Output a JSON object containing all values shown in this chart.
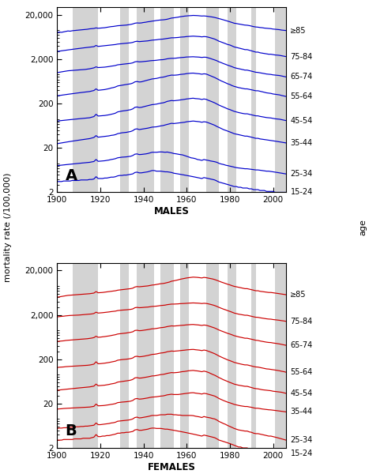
{
  "years": [
    1900,
    1901,
    1902,
    1903,
    1904,
    1905,
    1906,
    1907,
    1908,
    1909,
    1910,
    1911,
    1912,
    1913,
    1914,
    1915,
    1916,
    1917,
    1918,
    1919,
    1920,
    1921,
    1922,
    1923,
    1924,
    1925,
    1926,
    1927,
    1928,
    1929,
    1930,
    1931,
    1932,
    1933,
    1934,
    1935,
    1936,
    1937,
    1938,
    1939,
    1940,
    1941,
    1942,
    1943,
    1944,
    1945,
    1946,
    1947,
    1948,
    1949,
    1950,
    1951,
    1952,
    1953,
    1954,
    1955,
    1956,
    1957,
    1958,
    1959,
    1960,
    1961,
    1962,
    1963,
    1964,
    1965,
    1966,
    1967,
    1968,
    1969,
    1970,
    1971,
    1972,
    1973,
    1974,
    1975,
    1976,
    1977,
    1978,
    1979,
    1980,
    1981,
    1982,
    1983,
    1984,
    1985,
    1986,
    1987,
    1988,
    1989,
    1990,
    1991,
    1992,
    1993,
    1994,
    1995,
    1996,
    1997,
    1998,
    1999,
    2000,
    2001,
    2002,
    2003,
    2004,
    2005,
    2006
  ],
  "male_ge85": [
    8000,
    8200,
    8100,
    8300,
    8500,
    8700,
    8600,
    8800,
    8900,
    9000,
    9100,
    9200,
    9300,
    9400,
    9500,
    9700,
    9800,
    9900,
    10200,
    10000,
    10100,
    10200,
    10300,
    10500,
    10700,
    10900,
    11000,
    11200,
    11400,
    11500,
    11600,
    11700,
    11800,
    12000,
    12200,
    12500,
    13000,
    13200,
    13100,
    13200,
    13500,
    13700,
    14000,
    14200,
    14500,
    14700,
    15000,
    15200,
    15400,
    15500,
    15700,
    16000,
    16500,
    17000,
    17200,
    17500,
    17800,
    18200,
    18500,
    18800,
    19000,
    19200,
    19300,
    19500,
    19400,
    19300,
    19100,
    18900,
    19000,
    18800,
    18500,
    18200,
    17900,
    17500,
    17000,
    16500,
    16000,
    15500,
    15000,
    14500,
    14000,
    13500,
    13000,
    12800,
    12500,
    12300,
    12000,
    11800,
    11700,
    11500,
    11200,
    10900,
    10700,
    10600,
    10400,
    10300,
    10100,
    10000,
    9900,
    9800,
    9600,
    9500,
    9400,
    9300,
    9100,
    9000,
    8900
  ],
  "male_75_84": [
    3000,
    3050,
    3100,
    3150,
    3200,
    3250,
    3300,
    3350,
    3400,
    3450,
    3500,
    3550,
    3600,
    3650,
    3700,
    3750,
    3800,
    3850,
    4100,
    3900,
    3950,
    4000,
    4050,
    4100,
    4150,
    4200,
    4250,
    4300,
    4400,
    4450,
    4500,
    4550,
    4600,
    4650,
    4700,
    4800,
    5000,
    5100,
    5000,
    5050,
    5100,
    5150,
    5200,
    5300,
    5400,
    5450,
    5500,
    5600,
    5650,
    5700,
    5800,
    5900,
    6000,
    6100,
    6100,
    6150,
    6200,
    6300,
    6350,
    6400,
    6500,
    6550,
    6600,
    6650,
    6600,
    6550,
    6500,
    6400,
    6500,
    6450,
    6300,
    6100,
    5900,
    5700,
    5400,
    5100,
    4900,
    4700,
    4500,
    4300,
    4200,
    4000,
    3800,
    3700,
    3600,
    3500,
    3400,
    3300,
    3300,
    3200,
    3100,
    3000,
    2900,
    2900,
    2800,
    2750,
    2700,
    2650,
    2600,
    2600,
    2550,
    2500,
    2480,
    2450,
    2400,
    2350,
    2300
  ],
  "male_65_74": [
    1000,
    1020,
    1040,
    1060,
    1080,
    1100,
    1110,
    1120,
    1130,
    1140,
    1150,
    1160,
    1170,
    1180,
    1200,
    1220,
    1250,
    1280,
    1350,
    1300,
    1310,
    1320,
    1330,
    1350,
    1370,
    1400,
    1420,
    1450,
    1500,
    1520,
    1540,
    1560,
    1580,
    1600,
    1620,
    1660,
    1750,
    1780,
    1750,
    1760,
    1780,
    1800,
    1820,
    1850,
    1870,
    1880,
    1900,
    1930,
    1950,
    1960,
    2000,
    2050,
    2080,
    2100,
    2100,
    2120,
    2150,
    2180,
    2200,
    2220,
    2250,
    2260,
    2270,
    2280,
    2260,
    2250,
    2230,
    2200,
    2230,
    2220,
    2150,
    2080,
    2000,
    1930,
    1850,
    1750,
    1680,
    1600,
    1540,
    1470,
    1420,
    1360,
    1300,
    1260,
    1230,
    1200,
    1170,
    1140,
    1140,
    1110,
    1080,
    1050,
    1020,
    1010,
    990,
    970,
    950,
    930,
    920,
    910,
    890,
    880,
    870,
    860,
    840,
    820,
    800
  ],
  "male_55_64": [
    300,
    305,
    310,
    315,
    320,
    325,
    330,
    335,
    340,
    345,
    350,
    355,
    360,
    365,
    370,
    375,
    385,
    395,
    430,
    400,
    405,
    410,
    415,
    425,
    435,
    450,
    460,
    475,
    500,
    510,
    520,
    530,
    540,
    550,
    560,
    580,
    620,
    630,
    615,
    620,
    640,
    660,
    680,
    700,
    720,
    730,
    740,
    760,
    780,
    790,
    810,
    840,
    860,
    880,
    875,
    880,
    890,
    910,
    920,
    930,
    950,
    960,
    970,
    975,
    960,
    950,
    940,
    920,
    940,
    930,
    890,
    850,
    810,
    775,
    730,
    690,
    650,
    620,
    590,
    560,
    540,
    510,
    490,
    475,
    460,
    450,
    440,
    430,
    430,
    420,
    410,
    400,
    390,
    390,
    380,
    370,
    360,
    350,
    345,
    340,
    330,
    325,
    320,
    315,
    305,
    298,
    290
  ],
  "male_45_54": [
    80,
    82,
    83,
    84,
    85,
    86,
    87,
    88,
    89,
    90,
    91,
    92,
    93,
    94,
    95,
    96,
    99,
    102,
    115,
    105,
    106,
    107,
    108,
    110,
    112,
    115,
    118,
    122,
    130,
    133,
    136,
    138,
    140,
    143,
    146,
    152,
    165,
    168,
    163,
    165,
    170,
    175,
    180,
    185,
    190,
    192,
    195,
    200,
    205,
    208,
    215,
    225,
    230,
    235,
    232,
    235,
    238,
    242,
    246,
    250,
    255,
    258,
    262,
    265,
    260,
    258,
    255,
    248,
    255,
    250,
    238,
    228,
    218,
    208,
    196,
    185,
    176,
    168,
    160,
    152,
    147,
    140,
    134,
    130,
    126,
    123,
    120,
    118,
    118,
    115,
    112,
    109,
    106,
    106,
    103,
    101,
    99,
    97,
    96,
    95,
    93,
    91,
    90,
    89,
    87,
    85,
    83
  ],
  "male_35_44": [
    25,
    25.5,
    26,
    26.5,
    27,
    27.5,
    28,
    28.5,
    29,
    29.5,
    30,
    30.5,
    31,
    31.5,
    32,
    32.5,
    33.5,
    34.5,
    38,
    35,
    35.5,
    36,
    36.5,
    37,
    37.5,
    38.5,
    39,
    40,
    42,
    43,
    44,
    44.5,
    45,
    46,
    47,
    49,
    53,
    54,
    52,
    53,
    54,
    55,
    56,
    57.5,
    59,
    59.5,
    60,
    61.5,
    63,
    64,
    66,
    68,
    70,
    72,
    71,
    72,
    73,
    74,
    75,
    76,
    78,
    79,
    80,
    81,
    80,
    79,
    78,
    76,
    78,
    77,
    74,
    71,
    68,
    65,
    61,
    58,
    55,
    52,
    50,
    48,
    46,
    44,
    42,
    41,
    40,
    39,
    38,
    37,
    37,
    36,
    35,
    34,
    33,
    33,
    32,
    31.5,
    31,
    30.5,
    30,
    29.5,
    29,
    28.5,
    28,
    27.5,
    27,
    26.5,
    26
  ],
  "male_25_34": [
    8,
    8.1,
    8.2,
    8.3,
    8.4,
    8.5,
    8.6,
    8.7,
    8.8,
    8.9,
    9,
    9.1,
    9.2,
    9.3,
    9.4,
    9.5,
    9.7,
    9.9,
    11,
    10,
    10.1,
    10.2,
    10.3,
    10.5,
    10.7,
    11,
    11.2,
    11.5,
    12,
    12.2,
    12.4,
    12.5,
    12.6,
    12.8,
    13,
    13.5,
    14.5,
    14.7,
    14.2,
    14.3,
    14.5,
    14.7,
    15,
    15.5,
    16,
    16,
    16,
    16.2,
    16.3,
    16.2,
    16,
    16.2,
    15.8,
    15.5,
    15,
    14.8,
    14.5,
    14.2,
    14,
    13.5,
    13,
    12.5,
    12,
    11.8,
    11.5,
    11,
    10.8,
    10.5,
    11,
    10.7,
    10.5,
    10.2,
    10,
    9.8,
    9.5,
    9.0,
    8.7,
    8.5,
    8.2,
    8.0,
    7.8,
    7.6,
    7.4,
    7.2,
    7.1,
    7.0,
    6.9,
    6.8,
    6.8,
    6.7,
    6.6,
    6.5,
    6.4,
    6.4,
    6.3,
    6.2,
    6.1,
    6.0,
    6.0,
    5.9,
    5.8,
    5.7,
    5.6,
    5.5,
    5.4,
    5.3,
    5.2
  ],
  "male_15_24": [
    3.5,
    3.5,
    3.5,
    3.6,
    3.6,
    3.6,
    3.6,
    3.7,
    3.7,
    3.7,
    3.7,
    3.8,
    3.8,
    3.8,
    3.8,
    3.9,
    3.9,
    4.0,
    4.5,
    4.1,
    4.1,
    4.1,
    4.2,
    4.2,
    4.3,
    4.4,
    4.4,
    4.5,
    4.7,
    4.8,
    4.8,
    4.9,
    4.9,
    5.0,
    5.1,
    5.2,
    5.6,
    5.7,
    5.5,
    5.5,
    5.6,
    5.7,
    5.8,
    6.0,
    6.2,
    6.2,
    6.0,
    6.0,
    6.0,
    5.9,
    5.8,
    5.8,
    5.7,
    5.6,
    5.4,
    5.3,
    5.2,
    5.1,
    5.0,
    4.9,
    4.8,
    4.7,
    4.6,
    4.5,
    4.4,
    4.3,
    4.2,
    4.1,
    4.3,
    4.2,
    4.1,
    4.0,
    3.9,
    3.8,
    3.6,
    3.4,
    3.3,
    3.2,
    3.1,
    3.0,
    2.9,
    2.8,
    2.7,
    2.7,
    2.6,
    2.6,
    2.5,
    2.5,
    2.5,
    2.4,
    2.4,
    2.3,
    2.3,
    2.3,
    2.2,
    2.2,
    2.2,
    2.1,
    2.1,
    2.1,
    2.1,
    2.0,
    2.0,
    2.0,
    2.0,
    2.0,
    2.0
  ],
  "female_ge85": [
    5000,
    5100,
    5200,
    5300,
    5400,
    5500,
    5550,
    5600,
    5650,
    5700,
    5750,
    5800,
    5850,
    5900,
    5950,
    6000,
    6100,
    6200,
    6700,
    6300,
    6350,
    6400,
    6500,
    6600,
    6700,
    6800,
    6900,
    7000,
    7200,
    7300,
    7400,
    7500,
    7600,
    7700,
    7800,
    8000,
    8500,
    8700,
    8600,
    8700,
    8800,
    8900,
    9000,
    9200,
    9400,
    9500,
    9700,
    9900,
    10100,
    10200,
    10400,
    10700,
    11000,
    11500,
    11700,
    12000,
    12300,
    12700,
    13000,
    13300,
    13600,
    13800,
    14000,
    14200,
    14100,
    14000,
    13800,
    13600,
    14000,
    13800,
    13500,
    13200,
    12900,
    12500,
    12000,
    11500,
    11000,
    10600,
    10200,
    9800,
    9500,
    9100,
    8800,
    8600,
    8400,
    8200,
    8000,
    7800,
    7800,
    7600,
    7400,
    7200,
    7000,
    7000,
    6800,
    6700,
    6600,
    6500,
    6400,
    6400,
    6300,
    6200,
    6100,
    6000,
    5900,
    5800,
    5700
  ],
  "female_75_84": [
    1800,
    1830,
    1850,
    1870,
    1900,
    1920,
    1940,
    1950,
    1960,
    1970,
    1980,
    2000,
    2020,
    2040,
    2060,
    2080,
    2100,
    2150,
    2300,
    2200,
    2220,
    2240,
    2270,
    2300,
    2330,
    2370,
    2400,
    2430,
    2500,
    2530,
    2560,
    2580,
    2600,
    2630,
    2660,
    2720,
    2900,
    2950,
    2900,
    2920,
    2950,
    2980,
    3000,
    3050,
    3100,
    3120,
    3150,
    3200,
    3250,
    3280,
    3320,
    3400,
    3450,
    3500,
    3500,
    3520,
    3540,
    3580,
    3600,
    3620,
    3650,
    3680,
    3700,
    3720,
    3700,
    3680,
    3650,
    3600,
    3650,
    3620,
    3550,
    3450,
    3350,
    3240,
    3100,
    2950,
    2820,
    2700,
    2600,
    2490,
    2400,
    2300,
    2200,
    2140,
    2080,
    2040,
    2000,
    1960,
    1960,
    1910,
    1860,
    1810,
    1770,
    1760,
    1720,
    1690,
    1660,
    1630,
    1610,
    1600,
    1570,
    1550,
    1530,
    1510,
    1480,
    1460,
    1430
  ],
  "female_65_74": [
    500,
    510,
    515,
    520,
    530,
    535,
    540,
    545,
    550,
    555,
    560,
    565,
    570,
    575,
    580,
    590,
    600,
    615,
    660,
    625,
    630,
    640,
    648,
    660,
    670,
    685,
    700,
    715,
    740,
    750,
    760,
    770,
    780,
    795,
    810,
    830,
    890,
    900,
    880,
    885,
    900,
    915,
    930,
    950,
    970,
    975,
    990,
    1010,
    1030,
    1040,
    1060,
    1090,
    1110,
    1130,
    1120,
    1130,
    1140,
    1155,
    1165,
    1175,
    1190,
    1200,
    1210,
    1215,
    1200,
    1190,
    1175,
    1155,
    1180,
    1165,
    1130,
    1090,
    1050,
    1010,
    960,
    910,
    870,
    835,
    800,
    765,
    740,
    710,
    680,
    660,
    640,
    625,
    610,
    595,
    595,
    580,
    565,
    550,
    535,
    530,
    516,
    505,
    495,
    485,
    478,
    475,
    465,
    458,
    450,
    442,
    432,
    422,
    412
  ],
  "female_55_64": [
    130,
    132,
    133,
    134,
    136,
    137,
    138,
    139,
    140,
    141,
    142,
    143,
    144,
    145,
    146,
    148,
    151,
    155,
    175,
    158,
    159,
    161,
    163,
    166,
    169,
    173,
    177,
    181,
    190,
    193,
    196,
    198,
    200,
    203,
    207,
    213,
    230,
    233,
    227,
    229,
    233,
    238,
    243,
    250,
    257,
    259,
    263,
    270,
    276,
    279,
    285,
    295,
    300,
    306,
    303,
    306,
    309,
    313,
    317,
    320,
    325,
    328,
    331,
    333,
    328,
    324,
    320,
    313,
    322,
    316,
    303,
    291,
    278,
    266,
    251,
    236,
    224,
    213,
    203,
    193,
    186,
    178,
    170,
    165,
    160,
    156,
    152,
    149,
    149,
    145,
    141,
    137,
    134,
    133,
    130,
    127,
    124,
    121,
    120,
    118,
    116,
    114,
    112,
    110,
    107,
    105,
    102
  ],
  "female_45_54": [
    40,
    40.5,
    41,
    41.5,
    42,
    42.5,
    43,
    43.5,
    44,
    44.5,
    45,
    45.5,
    46,
    46.5,
    47,
    47.5,
    48.5,
    49.5,
    55,
    50.5,
    51,
    51.5,
    52,
    53,
    54,
    55.5,
    56.5,
    58,
    61,
    62,
    63,
    64,
    65,
    66,
    67.5,
    70,
    76,
    77,
    75,
    75.5,
    77,
    78.5,
    80,
    82,
    84,
    84.5,
    86,
    88,
    90,
    91,
    93,
    96,
    98,
    100,
    99,
    100,
    101,
    103,
    105,
    106,
    108,
    110,
    111,
    112,
    110,
    109,
    107,
    104.5,
    108,
    105,
    101,
    96,
    91,
    87,
    82,
    77,
    73,
    69,
    66,
    63,
    60,
    57.5,
    55,
    53.5,
    52,
    51,
    50,
    49,
    49,
    47.5,
    46,
    44.5,
    43.5,
    43,
    42,
    41,
    40.5,
    40,
    39.5,
    39,
    38,
    37.5,
    37,
    36.5,
    36,
    35,
    34
  ],
  "female_35_44": [
    15,
    15.2,
    15.3,
    15.5,
    15.6,
    15.7,
    15.8,
    15.9,
    16,
    16.1,
    16.2,
    16.3,
    16.4,
    16.5,
    16.6,
    16.7,
    17,
    17.3,
    19.5,
    17.8,
    17.9,
    18,
    18.2,
    18.5,
    18.8,
    19.2,
    19.5,
    20,
    21,
    21.3,
    21.6,
    21.8,
    22,
    22.3,
    22.7,
    23.5,
    25.5,
    26,
    25.2,
    25.4,
    25.8,
    26.3,
    26.8,
    27.5,
    28,
    28.2,
    28.5,
    29,
    29.5,
    29.8,
    30.5,
    31.5,
    32,
    32.5,
    32,
    32,
    32,
    32.5,
    33,
    33.5,
    34,
    34.5,
    35,
    35.2,
    34.5,
    34,
    33.5,
    32.8,
    34,
    33.5,
    32.5,
    31.5,
    30.5,
    29.5,
    27.8,
    26,
    24.7,
    23.5,
    22.5,
    21.5,
    20.8,
    20,
    19.2,
    18.7,
    18.2,
    17.8,
    17.5,
    17.2,
    17.2,
    16.8,
    16.5,
    16,
    15.7,
    15.7,
    15.4,
    15.1,
    14.9,
    14.7,
    14.5,
    14.4,
    14.2,
    14,
    13.8,
    13.6,
    13.4,
    13.2,
    13
  ],
  "female_25_34": [
    5.5,
    5.6,
    5.6,
    5.7,
    5.7,
    5.8,
    5.8,
    5.9,
    5.9,
    6.0,
    6.0,
    6.1,
    6.1,
    6.2,
    6.2,
    6.3,
    6.4,
    6.5,
    7.3,
    6.7,
    6.7,
    6.8,
    6.9,
    7.0,
    7.1,
    7.3,
    7.4,
    7.6,
    8.0,
    8.1,
    8.2,
    8.3,
    8.4,
    8.5,
    8.7,
    9.0,
    9.7,
    9.9,
    9.5,
    9.6,
    9.8,
    10,
    10.2,
    10.5,
    10.8,
    10.8,
    10.8,
    11,
    11.2,
    11.2,
    11.2,
    11.5,
    11.5,
    11.5,
    11.2,
    11.2,
    11,
    11,
    10.8,
    10.8,
    10.8,
    10.8,
    10.8,
    10.7,
    10.4,
    10.2,
    10,
    9.7,
    10.2,
    9.9,
    9.7,
    9.5,
    9.2,
    9.0,
    8.5,
    7.9,
    7.5,
    7.1,
    6.8,
    6.4,
    6.1,
    5.8,
    5.5,
    5.3,
    5.1,
    5.0,
    4.9,
    4.8,
    4.8,
    4.6,
    4.5,
    4.3,
    4.2,
    4.2,
    4.1,
    4.0,
    3.9,
    3.8,
    3.7,
    3.7,
    3.6,
    3.5,
    3.4,
    3.3,
    3.2,
    3.1,
    3.0
  ],
  "female_15_24": [
    3.0,
    3.0,
    3.0,
    3.1,
    3.1,
    3.1,
    3.1,
    3.1,
    3.2,
    3.2,
    3.2,
    3.2,
    3.3,
    3.3,
    3.3,
    3.3,
    3.4,
    3.5,
    4.0,
    3.6,
    3.6,
    3.7,
    3.7,
    3.8,
    3.8,
    3.9,
    4.0,
    4.1,
    4.3,
    4.3,
    4.4,
    4.4,
    4.5,
    4.5,
    4.6,
    4.7,
    5.1,
    5.2,
    5.0,
    5.0,
    5.1,
    5.2,
    5.3,
    5.5,
    5.6,
    5.6,
    5.5,
    5.5,
    5.5,
    5.4,
    5.3,
    5.3,
    5.2,
    5.1,
    5.0,
    4.9,
    4.8,
    4.7,
    4.6,
    4.5,
    4.4,
    4.3,
    4.2,
    4.1,
    4.0,
    3.9,
    3.8,
    3.7,
    3.9,
    3.8,
    3.7,
    3.6,
    3.5,
    3.4,
    3.2,
    3.0,
    2.9,
    2.8,
    2.7,
    2.6,
    2.5,
    2.4,
    2.3,
    2.2,
    2.1,
    2.1,
    2.0,
    2.0,
    2.0,
    1.9,
    1.9,
    1.8,
    1.8,
    1.8,
    1.7,
    1.7,
    1.7,
    1.6,
    1.6,
    1.6,
    1.5,
    1.5,
    1.5,
    1.5,
    1.5,
    1.5,
    1.5
  ],
  "shade_bands": [
    [
      1907,
      1919
    ],
    [
      1929,
      1933
    ],
    [
      1937,
      1945
    ],
    [
      1948,
      1954
    ],
    [
      1957,
      1961
    ],
    [
      1969,
      1975
    ],
    [
      1979,
      1983
    ],
    [
      1990,
      1992
    ],
    [
      2001,
      2006
    ]
  ],
  "male_color": "#0000cc",
  "female_color": "#cc0000",
  "shade_color": "#d3d3d3",
  "ylim": [
    2,
    30000
  ],
  "xlim": [
    1900,
    2006
  ],
  "age_labels": [
    "≥85",
    "75-84",
    "65-74",
    "55-64",
    "45-54",
    "35-44",
    "25-34",
    "15-24"
  ],
  "yticks": [
    2,
    20,
    200,
    2000,
    20000
  ],
  "ytick_labels": [
    "2",
    "20",
    "200",
    "2,000",
    "20,000"
  ],
  "xticks": [
    1900,
    1920,
    1940,
    1960,
    1980,
    2000
  ]
}
